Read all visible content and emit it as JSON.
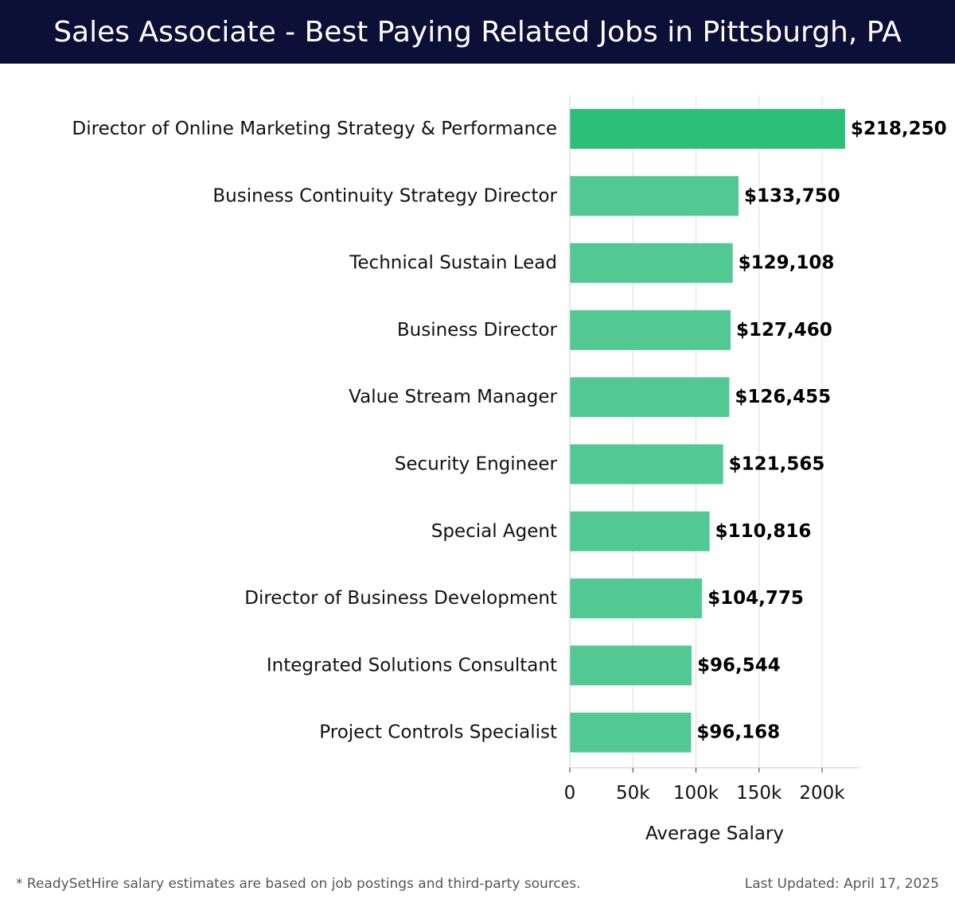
{
  "header": {
    "title": "Sales Associate - Best Paying Related Jobs in Pittsburgh, PA"
  },
  "footer": {
    "footnote": "* ReadySetHire salary estimates are based on job postings and third-party sources.",
    "last_updated": "Last Updated: April 17, 2025"
  },
  "colors": {
    "header_bg": "#0c0f36",
    "bar_top": "#2bbf78",
    "bar": "#52c993",
    "grid": "#dddddd"
  },
  "chart_data": {
    "type": "bar",
    "orientation": "horizontal",
    "title": "Sales Associate - Best Paying Related Jobs in Pittsburgh, PA",
    "xlabel": "Average Salary",
    "ylabel": "",
    "categories": [
      "Director of Online Marketing Strategy & Performance",
      "Business Continuity Strategy Director",
      "Technical Sustain Lead",
      "Business Director",
      "Value Stream Manager",
      "Security Engineer",
      "Special Agent",
      "Director of Business Development",
      "Integrated Solutions Consultant",
      "Project Controls Specialist"
    ],
    "values": [
      218250,
      133750,
      129108,
      127460,
      126455,
      121565,
      110816,
      104775,
      96544,
      96168
    ],
    "value_labels": [
      "$218,250",
      "$133,750",
      "$129,108",
      "$127,460",
      "$126,455",
      "$121,565",
      "$110,816",
      "$104,775",
      "$96,544",
      "$96,168"
    ],
    "xticks": [
      0,
      50000,
      100000,
      150000,
      200000
    ],
    "xtick_labels": [
      "0",
      "50k",
      "100k",
      "150k",
      "200k"
    ],
    "xlim": [
      0,
      230000
    ],
    "grid": true,
    "legend": "none"
  }
}
